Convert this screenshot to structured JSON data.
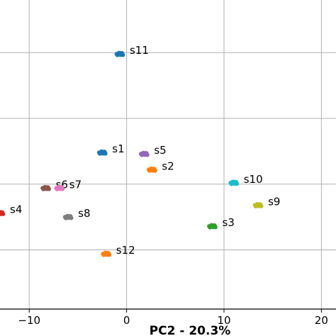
{
  "chart_data": {
    "type": "scatter",
    "title": "",
    "xlabel": "PC2 - 20.3%",
    "ylabel": "",
    "xlim": [
      -13,
      21.5
    ],
    "ylim": [
      -9.5,
      14
    ],
    "grid": true,
    "x_ticks": [
      -10,
      0,
      10,
      20
    ],
    "x_tick_labels": [
      "−10",
      "0",
      "10",
      "20"
    ],
    "y_grid": [
      -5,
      0,
      5,
      10
    ],
    "points": [
      {
        "name": "s11",
        "x": -0.7,
        "y": 9.9,
        "color": "#1f77b4"
      },
      {
        "name": "s1",
        "x": -2.5,
        "y": 2.4,
        "color": "#1f77b4"
      },
      {
        "name": "s5",
        "x": 1.8,
        "y": 2.3,
        "color": "#9467bd"
      },
      {
        "name": "s2",
        "x": 2.6,
        "y": 1.1,
        "color": "#ff7f0e"
      },
      {
        "name": "s6",
        "x": -8.3,
        "y": -0.3,
        "color": "#8c564b"
      },
      {
        "name": "s7",
        "x": -6.9,
        "y": -0.3,
        "color": "#e377c2"
      },
      {
        "name": "s4",
        "x": -13.0,
        "y": -2.2,
        "color": "#d62728"
      },
      {
        "name": "s8",
        "x": -6.0,
        "y": -2.5,
        "color": "#7f7f7f"
      },
      {
        "name": "s10",
        "x": 11.0,
        "y": 0.1,
        "color": "#17becf"
      },
      {
        "name": "s9",
        "x": 13.5,
        "y": -1.6,
        "color": "#bcbd22"
      },
      {
        "name": "s3",
        "x": 8.8,
        "y": -3.2,
        "color": "#2ca02c"
      },
      {
        "name": "s12",
        "x": -2.1,
        "y": -5.3,
        "color": "#ff7f0e"
      }
    ]
  }
}
